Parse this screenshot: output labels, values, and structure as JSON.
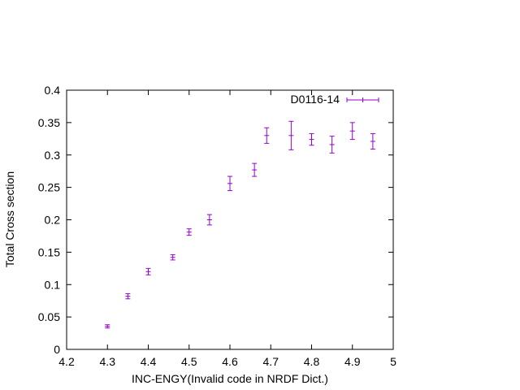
{
  "chart_data": {
    "type": "scatter",
    "title": "",
    "xlabel": "INC-ENGY(Invalid code in NRDF Dict.)",
    "ylabel": "Total Cross section",
    "xlim": [
      4.2,
      5.0
    ],
    "ylim": [
      0,
      0.4
    ],
    "x_ticks": [
      "4.2",
      "4.3",
      "4.4",
      "4.5",
      "4.6",
      "4.7",
      "4.8",
      "4.9",
      "5"
    ],
    "y_ticks": [
      "0",
      "0.05",
      "0.1",
      "0.15",
      "0.2",
      "0.25",
      "0.3",
      "0.35",
      "0.4"
    ],
    "grid": false,
    "legend_position": "top-right",
    "error_bars": true,
    "color": "#9400d3",
    "series": [
      {
        "name": "D0116-14",
        "points": [
          {
            "x": 4.3,
            "y": 0.0355,
            "err": 0.0025
          },
          {
            "x": 4.35,
            "y": 0.082,
            "err": 0.004
          },
          {
            "x": 4.4,
            "y": 0.12,
            "err": 0.005
          },
          {
            "x": 4.46,
            "y": 0.142,
            "err": 0.004
          },
          {
            "x": 4.5,
            "y": 0.181,
            "err": 0.005
          },
          {
            "x": 4.55,
            "y": 0.2,
            "err": 0.008
          },
          {
            "x": 4.6,
            "y": 0.256,
            "err": 0.011
          },
          {
            "x": 4.66,
            "y": 0.277,
            "err": 0.01
          },
          {
            "x": 4.69,
            "y": 0.33,
            "err": 0.012
          },
          {
            "x": 4.75,
            "y": 0.33,
            "err": 0.022
          },
          {
            "x": 4.8,
            "y": 0.324,
            "err": 0.009
          },
          {
            "x": 4.85,
            "y": 0.316,
            "err": 0.013
          },
          {
            "x": 4.9,
            "y": 0.337,
            "err": 0.013
          },
          {
            "x": 4.95,
            "y": 0.321,
            "err": 0.012
          }
        ]
      }
    ]
  }
}
